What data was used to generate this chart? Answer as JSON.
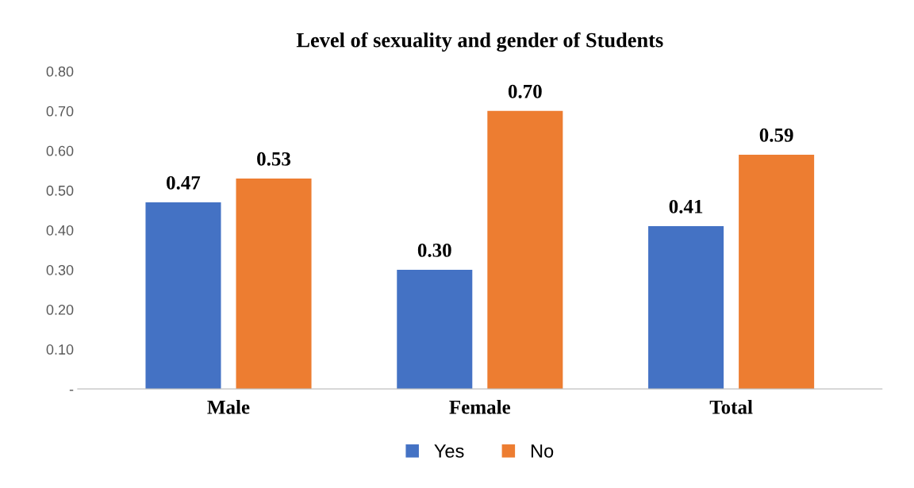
{
  "chart_data": {
    "type": "bar",
    "title": "Level of sexuality and gender of Students",
    "categories": [
      "Male",
      "Female",
      "Total"
    ],
    "series": [
      {
        "name": "Yes",
        "color": "#4472c4",
        "values": [
          0.47,
          0.3,
          0.41
        ],
        "value_labels": [
          "0.47",
          "0.30",
          "0.41"
        ]
      },
      {
        "name": "No",
        "color": "#ed7d31",
        "values": [
          0.53,
          0.7,
          0.59
        ],
        "value_labels": [
          "0.53",
          "0.70",
          "0.59"
        ]
      }
    ],
    "ylim": [
      0,
      0.8
    ],
    "yticks": [
      {
        "value": 0,
        "label": "-"
      },
      {
        "value": 0.1,
        "label": "0.10"
      },
      {
        "value": 0.2,
        "label": "0.20"
      },
      {
        "value": 0.3,
        "label": "0.30"
      },
      {
        "value": 0.4,
        "label": "0.40"
      },
      {
        "value": 0.5,
        "label": "0.50"
      },
      {
        "value": 0.6,
        "label": "0.60"
      },
      {
        "value": 0.7,
        "label": "0.70"
      },
      {
        "value": 0.8,
        "label": "0.80"
      }
    ],
    "legend": "bottom",
    "grid": false
  }
}
